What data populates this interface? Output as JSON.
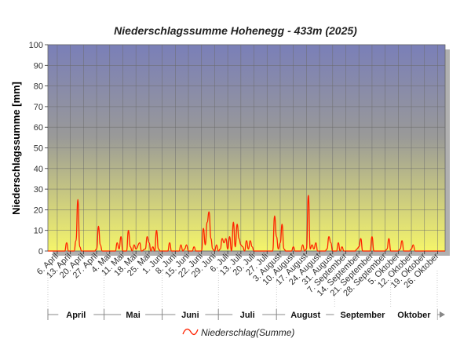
{
  "chart_data": {
    "type": "line",
    "title": "Niederschlagssumme Hohenegg - 433m (2025)",
    "ylabel": "Niederschlagssumme [mm]",
    "ylim": [
      0,
      100
    ],
    "yticks": [
      "0",
      "10",
      "20",
      "30",
      "40",
      "50",
      "60",
      "70",
      "80",
      "90",
      "100"
    ],
    "x_range": [
      "2025-04-01",
      "2025-10-30"
    ],
    "xtick_labels": [
      "6. April",
      "13. April",
      "20. April",
      "27. April",
      "4. Mai",
      "11. Mai",
      "18. Mai",
      "25. Mai",
      "1. Juni",
      "8. Juni",
      "15. Juni",
      "22. Juni",
      "29. Juni",
      "6. Juli",
      "13. Juli",
      "20. Juli",
      "27. Juli",
      "3. August",
      "10. August",
      "17. August",
      "24. August",
      "31. August",
      "7. September",
      "14. September",
      "21. September",
      "28. September",
      "5. Oktober",
      "12. Oktober",
      "19. Oktober",
      "26. Oktober"
    ],
    "months": [
      "April",
      "Mai",
      "Juni",
      "Juli",
      "August",
      "September",
      "Oktober"
    ],
    "grid": true,
    "legend_position": "bottom",
    "background_gradient": [
      "#7a7fb8",
      "#9a9a98",
      "#f5f56a"
    ],
    "series": [
      {
        "name": "Niederschlag(Summe)",
        "color": "#ff2200",
        "points": [
          [
            "2025-04-01",
            0
          ],
          [
            "2025-04-10",
            0
          ],
          [
            "2025-04-11",
            4
          ],
          [
            "2025-04-12",
            0
          ],
          [
            "2025-04-15",
            0
          ],
          [
            "2025-04-16",
            5
          ],
          [
            "2025-04-17",
            25
          ],
          [
            "2025-04-18",
            2
          ],
          [
            "2025-04-19",
            0
          ],
          [
            "2025-04-26",
            0
          ],
          [
            "2025-04-27",
            1
          ],
          [
            "2025-04-28",
            12
          ],
          [
            "2025-04-29",
            3
          ],
          [
            "2025-04-30",
            0
          ],
          [
            "2025-05-07",
            0
          ],
          [
            "2025-05-08",
            4
          ],
          [
            "2025-05-09",
            1
          ],
          [
            "2025-05-10",
            7
          ],
          [
            "2025-05-11",
            0
          ],
          [
            "2025-05-13",
            0
          ],
          [
            "2025-05-14",
            10
          ],
          [
            "2025-05-15",
            2
          ],
          [
            "2025-05-16",
            0
          ],
          [
            "2025-05-17",
            3
          ],
          [
            "2025-05-18",
            1
          ],
          [
            "2025-05-20",
            4
          ],
          [
            "2025-05-21",
            0
          ],
          [
            "2025-05-23",
            1
          ],
          [
            "2025-05-24",
            7
          ],
          [
            "2025-05-25",
            4
          ],
          [
            "2025-05-26",
            0
          ],
          [
            "2025-05-27",
            2
          ],
          [
            "2025-05-28",
            0
          ],
          [
            "2025-05-29",
            10
          ],
          [
            "2025-05-30",
            1
          ],
          [
            "2025-05-31",
            0
          ],
          [
            "2025-06-04",
            0
          ],
          [
            "2025-06-05",
            4
          ],
          [
            "2025-06-06",
            0
          ],
          [
            "2025-06-10",
            0
          ],
          [
            "2025-06-11",
            3
          ],
          [
            "2025-06-12",
            0
          ],
          [
            "2025-06-13",
            1
          ],
          [
            "2025-06-14",
            3
          ],
          [
            "2025-06-15",
            0
          ],
          [
            "2025-06-17",
            0
          ],
          [
            "2025-06-18",
            2
          ],
          [
            "2025-06-19",
            0
          ],
          [
            "2025-06-22",
            0
          ],
          [
            "2025-06-23",
            11
          ],
          [
            "2025-06-24",
            3
          ],
          [
            "2025-06-25",
            14
          ],
          [
            "2025-06-26",
            19
          ],
          [
            "2025-06-27",
            6
          ],
          [
            "2025-06-28",
            1
          ],
          [
            "2025-06-29",
            0
          ],
          [
            "2025-06-30",
            3
          ],
          [
            "2025-07-01",
            0
          ],
          [
            "2025-07-02",
            1
          ],
          [
            "2025-07-03",
            6
          ],
          [
            "2025-07-04",
            4
          ],
          [
            "2025-07-05",
            6
          ],
          [
            "2025-07-06",
            1
          ],
          [
            "2025-07-07",
            7
          ],
          [
            "2025-07-08",
            0
          ],
          [
            "2025-07-09",
            14
          ],
          [
            "2025-07-10",
            2
          ],
          [
            "2025-07-11",
            13
          ],
          [
            "2025-07-12",
            6
          ],
          [
            "2025-07-13",
            3
          ],
          [
            "2025-07-14",
            2
          ],
          [
            "2025-07-15",
            0
          ],
          [
            "2025-07-16",
            5
          ],
          [
            "2025-07-17",
            1
          ],
          [
            "2025-07-18",
            5
          ],
          [
            "2025-07-19",
            2
          ],
          [
            "2025-07-20",
            0
          ],
          [
            "2025-07-30",
            0
          ],
          [
            "2025-07-31",
            17
          ],
          [
            "2025-08-01",
            7
          ],
          [
            "2025-08-02",
            1
          ],
          [
            "2025-08-03",
            4
          ],
          [
            "2025-08-04",
            13
          ],
          [
            "2025-08-05",
            1
          ],
          [
            "2025-08-06",
            0
          ],
          [
            "2025-08-09",
            0
          ],
          [
            "2025-08-10",
            2
          ],
          [
            "2025-08-11",
            0
          ],
          [
            "2025-08-14",
            0
          ],
          [
            "2025-08-15",
            3
          ],
          [
            "2025-08-16",
            0
          ],
          [
            "2025-08-17",
            1
          ],
          [
            "2025-08-18",
            27
          ],
          [
            "2025-08-19",
            1
          ],
          [
            "2025-08-20",
            3
          ],
          [
            "2025-08-21",
            1
          ],
          [
            "2025-08-22",
            4
          ],
          [
            "2025-08-23",
            0
          ],
          [
            "2025-08-27",
            0
          ],
          [
            "2025-08-28",
            1
          ],
          [
            "2025-08-29",
            7
          ],
          [
            "2025-08-30",
            4
          ],
          [
            "2025-08-31",
            0
          ],
          [
            "2025-09-02",
            0
          ],
          [
            "2025-09-03",
            4
          ],
          [
            "2025-09-04",
            0
          ],
          [
            "2025-09-05",
            2
          ],
          [
            "2025-09-06",
            0
          ],
          [
            "2025-09-12",
            0
          ],
          [
            "2025-09-13",
            1
          ],
          [
            "2025-09-14",
            2
          ],
          [
            "2025-09-15",
            6
          ],
          [
            "2025-09-16",
            0
          ],
          [
            "2025-09-20",
            0
          ],
          [
            "2025-09-21",
            7
          ],
          [
            "2025-09-22",
            0
          ],
          [
            "2025-09-28",
            0
          ],
          [
            "2025-09-29",
            1
          ],
          [
            "2025-09-30",
            6
          ],
          [
            "2025-10-01",
            0
          ],
          [
            "2025-10-05",
            0
          ],
          [
            "2025-10-06",
            1
          ],
          [
            "2025-10-07",
            5
          ],
          [
            "2025-10-08",
            0
          ],
          [
            "2025-10-11",
            0
          ],
          [
            "2025-10-12",
            1
          ],
          [
            "2025-10-13",
            3
          ],
          [
            "2025-10-14",
            0
          ],
          [
            "2025-10-30",
            0
          ]
        ]
      }
    ]
  }
}
